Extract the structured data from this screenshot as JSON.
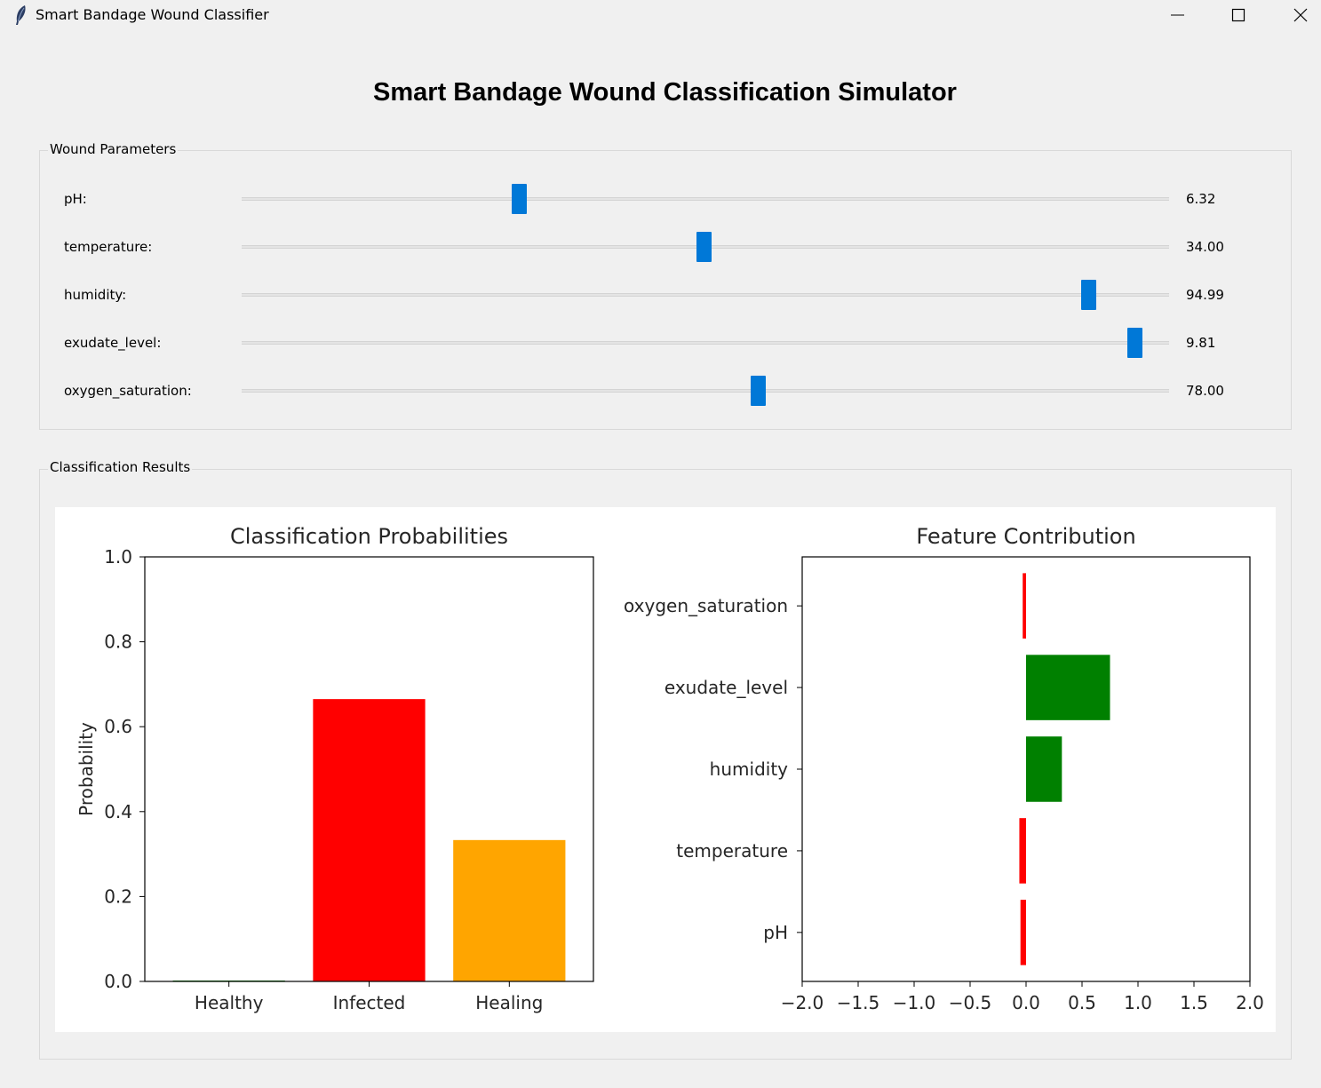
{
  "window": {
    "title": "Smart Bandage Wound Classifier",
    "icon": "feather-icon",
    "controls": [
      "minimize-icon",
      "maximize-icon",
      "close-icon"
    ]
  },
  "main_title": "Smart Bandage Wound Classification Simulator",
  "parameters": {
    "group_label": "Wound Parameters",
    "sliders": [
      {
        "label": "pH:",
        "value": "6.32",
        "fraction": 0.296
      },
      {
        "label": "temperature:",
        "value": "34.00",
        "fraction": 0.499
      },
      {
        "label": "humidity:",
        "value": "94.99",
        "fraction": 0.92
      },
      {
        "label": "exudate_level:",
        "value": "9.81",
        "fraction": 0.971
      },
      {
        "label": "oxygen_saturation:",
        "value": "78.00",
        "fraction": 0.558
      }
    ],
    "accent_color": "#0078d7"
  },
  "results": {
    "group_label": "Classification Results"
  },
  "chart_data": [
    {
      "type": "bar",
      "title": "Classification Probabilities",
      "xlabel": "",
      "ylabel": "Probability",
      "categories": [
        "Healthy",
        "Infected",
        "Healing"
      ],
      "values": [
        0.002,
        0.665,
        0.333
      ],
      "colors": [
        "#008000",
        "#ff0000",
        "#ffa500"
      ],
      "ylim": [
        0,
        1.0
      ],
      "yticks": [
        "0.0",
        "0.2",
        "0.4",
        "0.6",
        "0.8",
        "1.0"
      ],
      "grid": false
    },
    {
      "type": "bar",
      "orientation": "horizontal",
      "title": "Feature Contribution",
      "xlabel": "",
      "ylabel": "",
      "categories": [
        "pH",
        "temperature",
        "humidity",
        "exudate_level",
        "oxygen_saturation"
      ],
      "values": [
        -0.05,
        -0.06,
        0.32,
        0.75,
        -0.03
      ],
      "colors": [
        "#ff0000",
        "#ff0000",
        "#008000",
        "#008000",
        "#ff0000"
      ],
      "xlim": [
        -2.0,
        2.0
      ],
      "xticks": [
        "−2.0",
        "−1.5",
        "−1.0",
        "−0.5",
        "0.0",
        "0.5",
        "1.0",
        "1.5",
        "2.0"
      ],
      "grid": false
    }
  ]
}
